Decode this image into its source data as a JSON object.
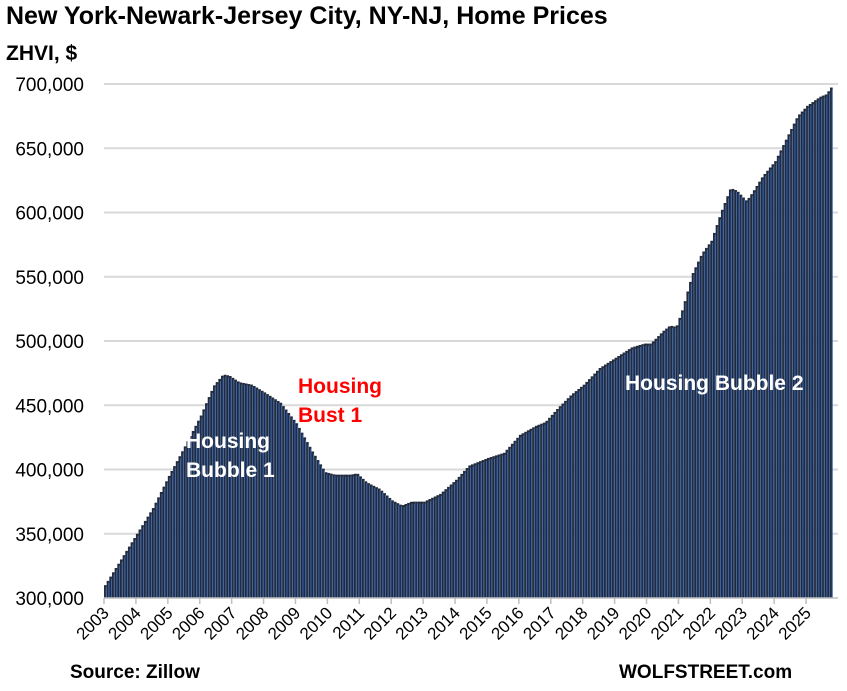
{
  "chart_data": {
    "type": "bar",
    "title": "New York-Newark-Jersey City, NY-NJ, Home Prices",
    "ylabel": "ZHVI, $",
    "xlabel": "",
    "ylim": [
      300000,
      700000
    ],
    "yticks": [
      "300,000",
      "350,000",
      "400,000",
      "450,000",
      "500,000",
      "550,000",
      "600,000",
      "650,000",
      "700,000"
    ],
    "xlim": [
      2003,
      2026
    ],
    "xticks": [
      "2003",
      "2004",
      "2005",
      "2006",
      "2007",
      "2008",
      "2009",
      "2010",
      "2011",
      "2012",
      "2013",
      "2014",
      "2015",
      "2016",
      "2017",
      "2018",
      "2019",
      "2020",
      "2021",
      "2022",
      "2023",
      "2024",
      "2025"
    ],
    "frequency": "monthly",
    "series_anchor_points": [
      [
        2003.0,
        310000
      ],
      [
        2003.5,
        330000
      ],
      [
        2004.0,
        350000
      ],
      [
        2004.5,
        370000
      ],
      [
        2005.0,
        395000
      ],
      [
        2005.5,
        418000
      ],
      [
        2006.0,
        442000
      ],
      [
        2006.4,
        465000
      ],
      [
        2006.7,
        474000
      ],
      [
        2006.9,
        473000
      ],
      [
        2007.2,
        468000
      ],
      [
        2007.6,
        466000
      ],
      [
        2008.0,
        460000
      ],
      [
        2008.5,
        452000
      ],
      [
        2009.0,
        436000
      ],
      [
        2009.5,
        414000
      ],
      [
        2009.9,
        398000
      ],
      [
        2010.2,
        396000
      ],
      [
        2010.7,
        396000
      ],
      [
        2010.9,
        397000
      ],
      [
        2011.2,
        390000
      ],
      [
        2011.6,
        385000
      ],
      [
        2012.0,
        376000
      ],
      [
        2012.3,
        372000
      ],
      [
        2012.6,
        375000
      ],
      [
        2013.0,
        375000
      ],
      [
        2013.5,
        381000
      ],
      [
        2014.0,
        392000
      ],
      [
        2014.4,
        403000
      ],
      [
        2015.0,
        409000
      ],
      [
        2015.5,
        413000
      ],
      [
        2016.0,
        427000
      ],
      [
        2016.5,
        434000
      ],
      [
        2016.8,
        437000
      ],
      [
        2017.2,
        448000
      ],
      [
        2017.6,
        458000
      ],
      [
        2018.0,
        466000
      ],
      [
        2018.5,
        479000
      ],
      [
        2019.0,
        487000
      ],
      [
        2019.5,
        495000
      ],
      [
        2019.9,
        498000
      ],
      [
        2020.1,
        498000
      ],
      [
        2020.5,
        508000
      ],
      [
        2020.7,
        512000
      ],
      [
        2020.9,
        511000
      ],
      [
        2021.1,
        525000
      ],
      [
        2021.4,
        552000
      ],
      [
        2021.7,
        568000
      ],
      [
        2022.0,
        578000
      ],
      [
        2022.3,
        600000
      ],
      [
        2022.6,
        619000
      ],
      [
        2022.8,
        617000
      ],
      [
        2023.1,
        609000
      ],
      [
        2023.3,
        616000
      ],
      [
        2023.6,
        628000
      ],
      [
        2024.0,
        640000
      ],
      [
        2024.3,
        655000
      ],
      [
        2024.7,
        675000
      ],
      [
        2025.0,
        683000
      ],
      [
        2025.4,
        690000
      ],
      [
        2025.6,
        692000
      ],
      [
        2025.8,
        699000
      ]
    ],
    "annotations": [
      {
        "text": "Housing Bubble 1",
        "lines": [
          "Housing",
          "Bubble 1"
        ],
        "color": "#ffffff"
      },
      {
        "text": "Housing Bust 1",
        "lines": [
          "Housing",
          "Bust 1"
        ],
        "color": "#ff0000"
      },
      {
        "text": "Housing Bubble 2",
        "lines": [
          "Housing Bubble 2"
        ],
        "color": "#ffffff"
      }
    ],
    "grid": true,
    "legend": "none",
    "colors": {
      "bar": "#222b3b",
      "bar_edge": "#4472c4",
      "grid": "#d9d9d9"
    }
  },
  "footer": {
    "source": "Source: Zillow",
    "brand": "WOLFSTREET.com"
  }
}
